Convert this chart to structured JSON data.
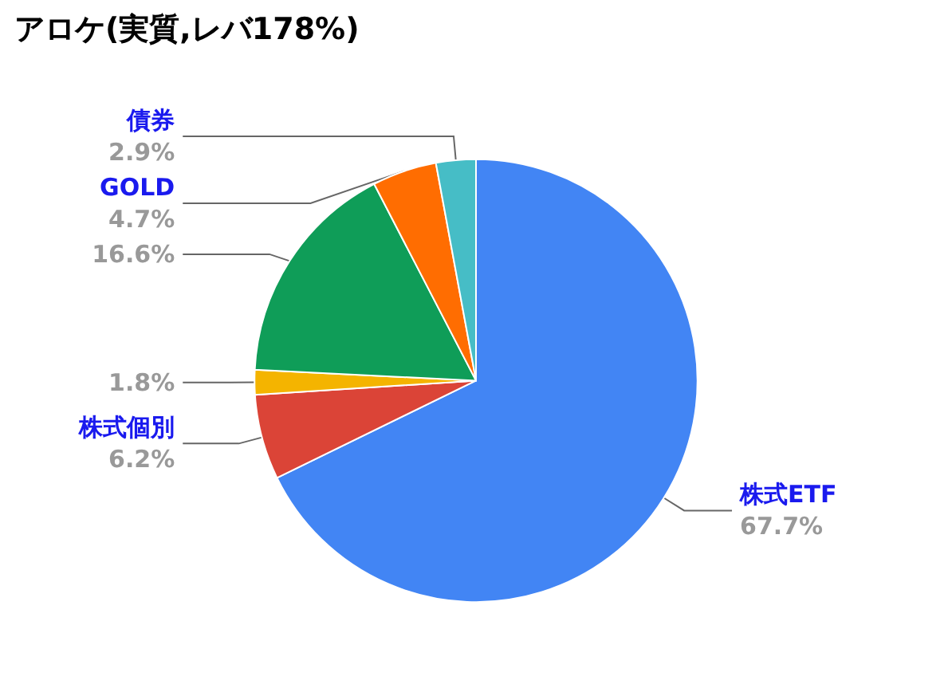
{
  "chart_data": {
    "type": "pie",
    "title": "アロケ(実質,レバ178%)",
    "categories": [
      "株式ETF",
      "株式個別",
      null,
      null,
      "GOLD",
      "債券"
    ],
    "values": [
      67.7,
      6.2,
      1.8,
      16.6,
      4.7,
      2.9
    ],
    "value_labels": [
      "67.7%",
      "6.2%",
      "1.8%",
      "16.6%",
      "4.7%",
      "2.9%"
    ],
    "colors": [
      "#4285f4",
      "#db4437",
      "#f4b400",
      "#0f9d58",
      "#ff6d01",
      "#46bdc6"
    ],
    "legend": false
  }
}
